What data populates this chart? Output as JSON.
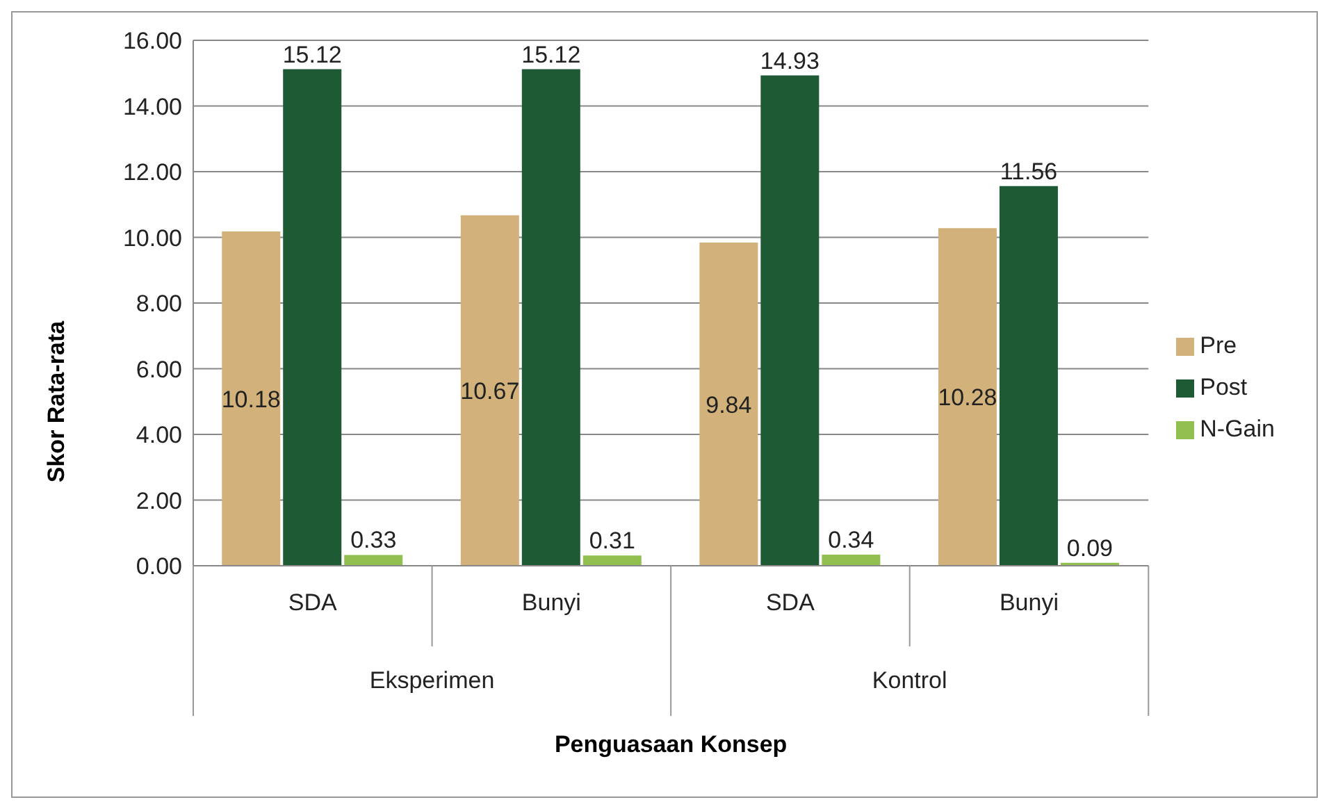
{
  "chart_data": {
    "type": "bar",
    "xlabel": "Penguasaan Konsep",
    "ylabel": "Skor Rata-rata",
    "categories": [
      "SDA",
      "Bunyi",
      "SDA",
      "Bunyi"
    ],
    "annotations": [
      "Eksperimen",
      "Kontrol"
    ],
    "series": [
      {
        "name": "Pre",
        "color": "#d2b27a",
        "values": [
          10.18,
          10.67,
          9.84,
          10.28
        ]
      },
      {
        "name": "Post",
        "color": "#1e5a34",
        "values": [
          15.12,
          15.12,
          14.93,
          11.56
        ]
      },
      {
        "name": "N-Gain",
        "color": "#92c050",
        "values": [
          0.33,
          0.31,
          0.34,
          0.09
        ]
      }
    ],
    "ylim": [
      0,
      16
    ],
    "yticks": [
      {
        "value": 0,
        "label": "0.00"
      },
      {
        "value": 2,
        "label": "2.00"
      },
      {
        "value": 4,
        "label": "4.00"
      },
      {
        "value": 6,
        "label": "6.00"
      },
      {
        "value": 8,
        "label": "8.00"
      },
      {
        "value": 10,
        "label": "10.00"
      },
      {
        "value": 12,
        "label": "12.00"
      },
      {
        "value": 14,
        "label": "14.00"
      },
      {
        "value": 16,
        "label": "16.00"
      }
    ],
    "grid": "y",
    "legend": "right",
    "data_labels": true
  }
}
